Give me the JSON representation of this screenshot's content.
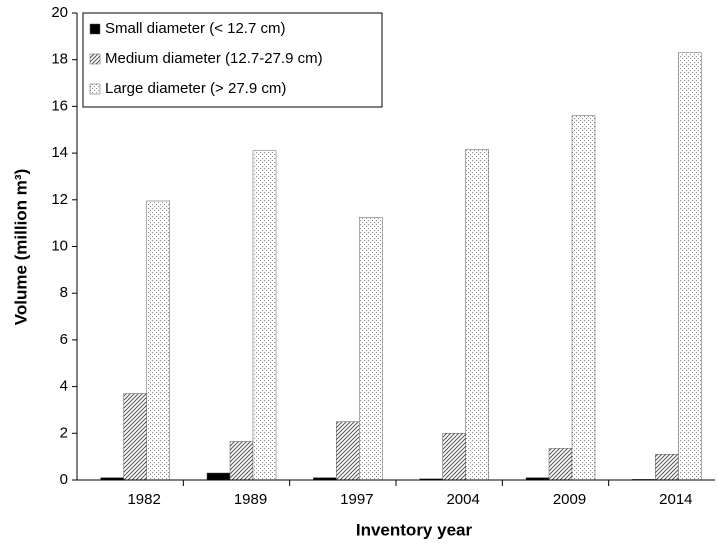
{
  "chart_data": {
    "type": "bar",
    "x_label": "Inventory year",
    "y_label": "Volume (million m³)",
    "categories": [
      "1982",
      "1989",
      "1997",
      "2004",
      "2009",
      "2014"
    ],
    "series": [
      {
        "name": "Small diameter (< 12.7 cm)",
        "color": "#000000",
        "pattern": "solid",
        "values": [
          0.1,
          0.3,
          0.1,
          0.05,
          0.1,
          0.03
        ]
      },
      {
        "name": "Medium diameter (12.7-27.9 cm)",
        "color": "#555555",
        "pattern": "hatch",
        "values": [
          3.7,
          1.65,
          2.5,
          2.0,
          1.35,
          1.1
        ]
      },
      {
        "name": "Large diameter (> 27.9 cm)",
        "color": "#888888",
        "pattern": "dots",
        "values": [
          11.95,
          14.1,
          11.25,
          14.15,
          15.6,
          18.3
        ]
      }
    ],
    "ylim": [
      0,
      20
    ],
    "yticks": [
      0,
      2,
      4,
      6,
      8,
      10,
      12,
      14,
      16,
      18,
      20
    ],
    "grid": false,
    "legend": "top-left"
  }
}
